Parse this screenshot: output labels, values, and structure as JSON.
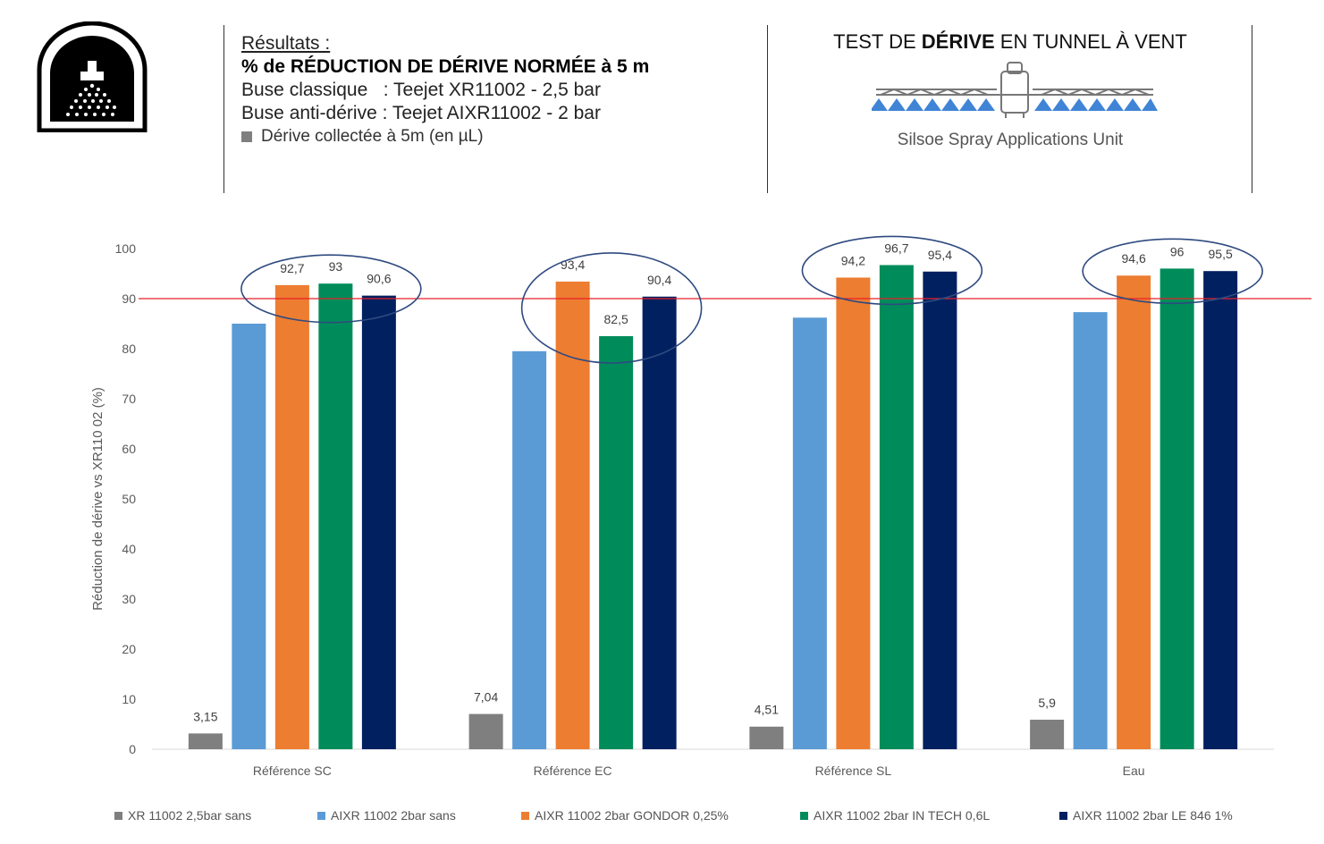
{
  "header": {
    "results_label": "Résultats :",
    "main_heading": "% de RÉDUCTION DE DÉRIVE NORMÉE à 5 m",
    "classic_nozzle": "Buse classique   : Teejet XR11002 - 2,5 bar",
    "anti_drift_nozzle": "Buse anti-dérive : Teejet AIXR11002 - 2 bar",
    "collected_drift": "Dérive collectée à 5m (en µL)"
  },
  "right_panel": {
    "title_part1": "TEST DE ",
    "title_bold": "DÉRIVE",
    "title_part2": " EN TUNNEL À VENT",
    "subtitle": "Silsoe Spray Applications Unit"
  },
  "colors": {
    "grey": "#7f7f7f",
    "light_blue": "#5b9bd5",
    "orange": "#ed7d31",
    "green": "#008c5a",
    "navy": "#002060",
    "reference_line": "#e8202a",
    "ellipse": "#2f4a80"
  },
  "chart_data": {
    "type": "bar",
    "categories": [
      "Référence SC",
      "Référence EC",
      "Référence SL",
      "Eau"
    ],
    "ylabel": "Réduction de dérive vs XR110 02  (%)",
    "ylim": [
      0,
      100
    ],
    "yticks": [
      0,
      10,
      20,
      30,
      40,
      50,
      60,
      70,
      80,
      90,
      100
    ],
    "reference_line": 90,
    "highlight": "ellipses around the three additive bars of each group",
    "legend_position": "bottom",
    "grid": false,
    "series": [
      {
        "name": "XR 11002 2,5bar sans",
        "color": "#7f7f7f",
        "values": [
          3.15,
          7.04,
          4.51,
          5.9
        ],
        "labels": [
          "3,15",
          "7,04",
          "4,51",
          "5,9"
        ]
      },
      {
        "name": "AIXR 11002 2bar sans",
        "color": "#5b9bd5",
        "values": [
          85,
          79.5,
          86.2,
          87.3
        ],
        "labels": [
          null,
          null,
          null,
          null
        ]
      },
      {
        "name": "AIXR 11002 2bar GONDOR 0,25%",
        "color": "#ed7d31",
        "values": [
          92.7,
          93.4,
          94.2,
          94.6
        ],
        "labels": [
          "92,7",
          "93,4",
          "94,2",
          "94,6"
        ]
      },
      {
        "name": "AIXR 11002 2bar IN TECH 0,6L",
        "color": "#008c5a",
        "values": [
          93,
          82.5,
          96.7,
          96
        ],
        "labels": [
          "93",
          "82,5",
          "96,7",
          "96"
        ]
      },
      {
        "name": "AIXR 11002 2bar LE 846 1%",
        "color": "#002060",
        "values": [
          90.6,
          90.4,
          95.4,
          95.5
        ],
        "labels": [
          "90,6",
          "90,4",
          "95,4",
          "95,5"
        ]
      }
    ]
  }
}
